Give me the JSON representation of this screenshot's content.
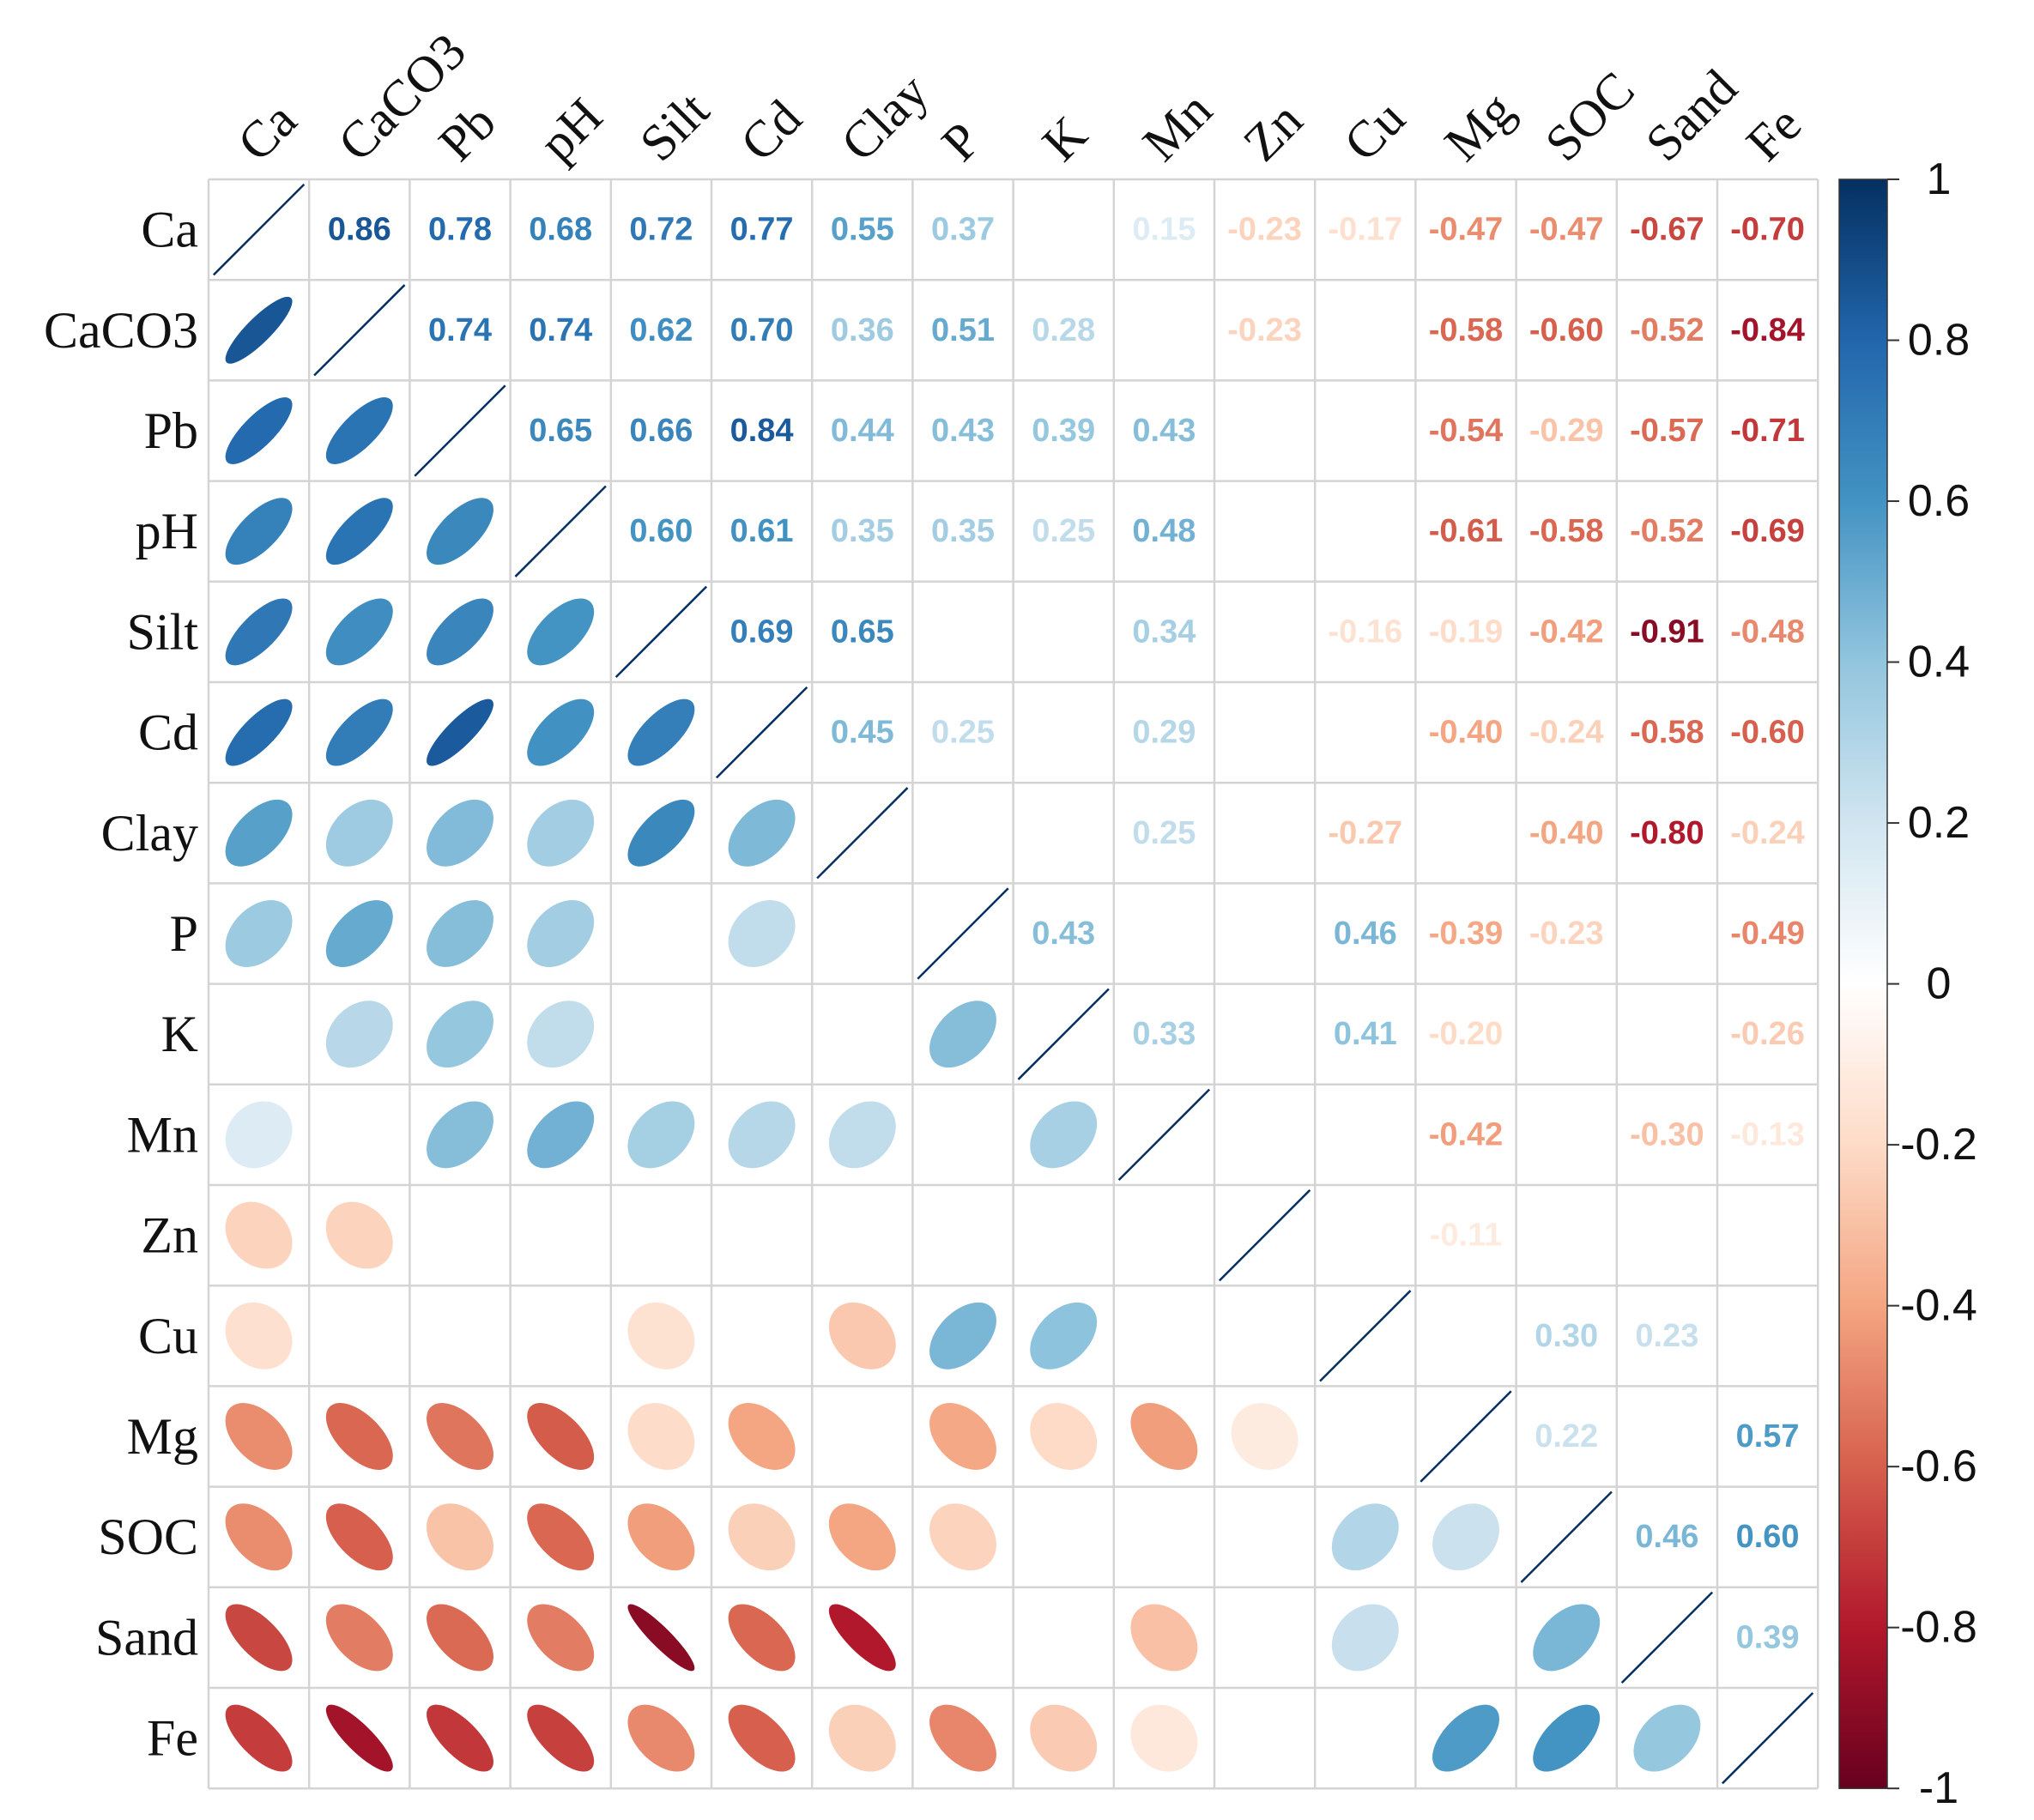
{
  "chart_data": {
    "type": "heatmap",
    "style": "correlation-matrix (ellipses in lower triangle, numbers in upper triangle)",
    "title": "",
    "variables": [
      "Ca",
      "CaCO3",
      "Pb",
      "pH",
      "Silt",
      "Cd",
      "Clay",
      "P",
      "K",
      "Mn",
      "Zn",
      "Cu",
      "Mg",
      "SOC",
      "Sand",
      "Fe"
    ],
    "matrix": [
      [
        1,
        0.86,
        0.78,
        0.68,
        0.72,
        0.77,
        0.55,
        0.37,
        null,
        0.15,
        -0.23,
        -0.17,
        -0.47,
        -0.47,
        -0.67,
        -0.7
      ],
      [
        0.86,
        1,
        0.74,
        0.74,
        0.62,
        0.7,
        0.36,
        0.51,
        0.28,
        null,
        -0.23,
        null,
        -0.58,
        -0.6,
        -0.52,
        -0.84
      ],
      [
        0.78,
        0.74,
        1,
        0.65,
        0.66,
        0.84,
        0.44,
        0.43,
        0.39,
        0.43,
        null,
        null,
        -0.54,
        -0.29,
        -0.57,
        -0.71
      ],
      [
        0.68,
        0.74,
        0.65,
        1,
        0.6,
        0.61,
        0.35,
        0.35,
        0.25,
        0.48,
        null,
        null,
        -0.61,
        -0.58,
        -0.52,
        -0.69
      ],
      [
        0.72,
        0.62,
        0.66,
        0.6,
        1,
        0.69,
        0.65,
        null,
        null,
        0.34,
        null,
        -0.16,
        -0.19,
        -0.42,
        -0.91,
        -0.48
      ],
      [
        0.77,
        0.7,
        0.84,
        0.61,
        0.69,
        1,
        0.45,
        0.25,
        null,
        0.29,
        null,
        null,
        -0.4,
        -0.24,
        -0.58,
        -0.6
      ],
      [
        0.55,
        0.36,
        0.44,
        0.35,
        0.65,
        0.45,
        1,
        null,
        null,
        0.25,
        null,
        -0.27,
        null,
        -0.4,
        -0.8,
        -0.24
      ],
      [
        0.37,
        0.51,
        0.43,
        0.35,
        null,
        0.25,
        null,
        1,
        0.43,
        null,
        null,
        0.46,
        -0.39,
        -0.23,
        null,
        -0.49
      ],
      [
        null,
        0.28,
        0.39,
        0.25,
        null,
        null,
        null,
        0.43,
        1,
        0.33,
        null,
        0.41,
        -0.2,
        null,
        null,
        -0.26
      ],
      [
        0.15,
        null,
        0.43,
        0.48,
        0.34,
        0.29,
        0.25,
        null,
        0.33,
        1,
        null,
        null,
        -0.42,
        null,
        -0.3,
        -0.13
      ],
      [
        -0.23,
        -0.23,
        null,
        null,
        null,
        null,
        null,
        null,
        null,
        null,
        1,
        null,
        -0.11,
        null,
        null,
        null
      ],
      [
        -0.17,
        null,
        null,
        null,
        -0.16,
        null,
        -0.27,
        0.46,
        0.41,
        null,
        null,
        1,
        null,
        0.3,
        0.23,
        null
      ],
      [
        -0.47,
        -0.58,
        -0.54,
        -0.61,
        -0.19,
        -0.4,
        null,
        -0.39,
        -0.2,
        -0.42,
        -0.11,
        null,
        1,
        0.22,
        null,
        0.57
      ],
      [
        -0.47,
        -0.6,
        -0.29,
        -0.58,
        -0.42,
        -0.24,
        -0.4,
        -0.23,
        null,
        null,
        null,
        0.3,
        0.22,
        1,
        0.46,
        0.6
      ],
      [
        -0.67,
        -0.52,
        -0.57,
        -0.52,
        -0.91,
        -0.58,
        -0.8,
        null,
        null,
        -0.3,
        null,
        0.23,
        null,
        0.46,
        1,
        0.39
      ],
      [
        -0.7,
        -0.84,
        -0.71,
        -0.69,
        -0.48,
        -0.6,
        -0.24,
        -0.49,
        -0.26,
        -0.13,
        null,
        null,
        0.57,
        0.6,
        0.39,
        1
      ]
    ],
    "colorbar": {
      "range": [
        -1,
        1
      ],
      "ticks": [
        1,
        0.8,
        0.6,
        0.4,
        0.2,
        0,
        -0.2,
        -0.4,
        -0.6,
        -0.8,
        -1
      ],
      "tick_labels": [
        "1",
        "0.8",
        "0.6",
        "0.4",
        "0.2",
        "0",
        "-0.2",
        "-0.4",
        "-0.6",
        "-0.8",
        "-1"
      ],
      "colors": [
        "#67001F",
        "#B2182B",
        "#D6604D",
        "#F4A582",
        "#FDDBC7",
        "#FFFFFF",
        "#D1E5F0",
        "#92C5DE",
        "#4393C3",
        "#2166AC",
        "#053061"
      ]
    },
    "xlabel": "",
    "ylabel": "",
    "grid": true,
    "legend": "right"
  }
}
